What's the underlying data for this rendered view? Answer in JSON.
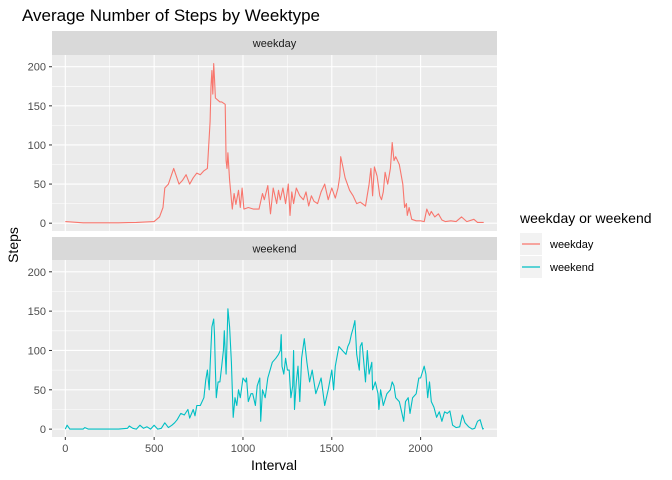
{
  "chart_data": {
    "type": "line",
    "title": "Average Number of Steps by Weektype",
    "xlabel": "Interval",
    "ylabel": "Steps",
    "xlim": [
      -75,
      2430
    ],
    "ylim": [
      -10,
      215
    ],
    "x_ticks": [
      0,
      500,
      1000,
      1500,
      2000
    ],
    "y_ticks": [
      0,
      50,
      100,
      150,
      200
    ],
    "grid": true,
    "legend": {
      "title": "weekday or weekend",
      "position": "right",
      "entries": [
        "weekday",
        "weekend"
      ]
    },
    "panels": [
      {
        "strip": "weekday",
        "series": "weekday",
        "color": "#F8766D",
        "points": [
          [
            0,
            2
          ],
          [
            100,
            0.5
          ],
          [
            200,
            0.5
          ],
          [
            300,
            0.5
          ],
          [
            400,
            1
          ],
          [
            500,
            2
          ],
          [
            530,
            8
          ],
          [
            550,
            20
          ],
          [
            560,
            45
          ],
          [
            580,
            50
          ],
          [
            610,
            70
          ],
          [
            640,
            50
          ],
          [
            660,
            55
          ],
          [
            680,
            62
          ],
          [
            700,
            50
          ],
          [
            720,
            58
          ],
          [
            740,
            64
          ],
          [
            760,
            62
          ],
          [
            780,
            67
          ],
          [
            800,
            70
          ],
          [
            815,
            130
          ],
          [
            820,
            175
          ],
          [
            825,
            195
          ],
          [
            830,
            165
          ],
          [
            835,
            204
          ],
          [
            840,
            185
          ],
          [
            845,
            160
          ],
          [
            870,
            155
          ],
          [
            880,
            155
          ],
          [
            900,
            152
          ],
          [
            905,
            80
          ],
          [
            910,
            70
          ],
          [
            915,
            90
          ],
          [
            925,
            55
          ],
          [
            935,
            30
          ],
          [
            940,
            18
          ],
          [
            950,
            38
          ],
          [
            960,
            24
          ],
          [
            975,
            42
          ],
          [
            985,
            20
          ],
          [
            995,
            45
          ],
          [
            1005,
            18
          ],
          [
            1030,
            20
          ],
          [
            1060,
            18
          ],
          [
            1090,
            18
          ],
          [
            1110,
            38
          ],
          [
            1120,
            30
          ],
          [
            1140,
            48
          ],
          [
            1155,
            12
          ],
          [
            1170,
            45
          ],
          [
            1190,
            25
          ],
          [
            1200,
            42
          ],
          [
            1210,
            30
          ],
          [
            1225,
            45
          ],
          [
            1240,
            25
          ],
          [
            1255,
            50
          ],
          [
            1265,
            10
          ],
          [
            1275,
            40
          ],
          [
            1285,
            25
          ],
          [
            1300,
            45
          ],
          [
            1320,
            35
          ],
          [
            1340,
            30
          ],
          [
            1355,
            40
          ],
          [
            1370,
            22
          ],
          [
            1385,
            35
          ],
          [
            1400,
            28
          ],
          [
            1420,
            25
          ],
          [
            1440,
            40
          ],
          [
            1460,
            50
          ],
          [
            1480,
            30
          ],
          [
            1500,
            45
          ],
          [
            1520,
            32
          ],
          [
            1535,
            45
          ],
          [
            1545,
            60
          ],
          [
            1550,
            85
          ],
          [
            1560,
            75
          ],
          [
            1575,
            58
          ],
          [
            1600,
            42
          ],
          [
            1620,
            35
          ],
          [
            1640,
            25
          ],
          [
            1660,
            27
          ],
          [
            1690,
            22
          ],
          [
            1710,
            50
          ],
          [
            1720,
            70
          ],
          [
            1730,
            35
          ],
          [
            1740,
            72
          ],
          [
            1755,
            60
          ],
          [
            1770,
            35
          ],
          [
            1780,
            30
          ],
          [
            1790,
            40
          ],
          [
            1800,
            65
          ],
          [
            1815,
            50
          ],
          [
            1830,
            70
          ],
          [
            1840,
            103
          ],
          [
            1850,
            80
          ],
          [
            1860,
            85
          ],
          [
            1880,
            75
          ],
          [
            1900,
            50
          ],
          [
            1910,
            20
          ],
          [
            1920,
            25
          ],
          [
            1925,
            10
          ],
          [
            1935,
            20
          ],
          [
            1950,
            5
          ],
          [
            1975,
            3
          ],
          [
            2000,
            3
          ],
          [
            2020,
            2
          ],
          [
            2035,
            18
          ],
          [
            2050,
            10
          ],
          [
            2060,
            15
          ],
          [
            2080,
            8
          ],
          [
            2100,
            12
          ],
          [
            2120,
            4
          ],
          [
            2140,
            2
          ],
          [
            2170,
            3
          ],
          [
            2200,
            2
          ],
          [
            2230,
            8
          ],
          [
            2260,
            2
          ],
          [
            2300,
            5
          ],
          [
            2320,
            1
          ],
          [
            2355,
            1
          ]
        ]
      },
      {
        "strip": "weekend",
        "series": "weekend",
        "color": "#00BFC4",
        "points": [
          [
            0,
            0
          ],
          [
            10,
            5
          ],
          [
            25,
            0
          ],
          [
            100,
            0
          ],
          [
            110,
            2
          ],
          [
            130,
            0
          ],
          [
            200,
            0
          ],
          [
            300,
            0
          ],
          [
            350,
            1
          ],
          [
            360,
            4
          ],
          [
            380,
            1
          ],
          [
            400,
            0
          ],
          [
            420,
            5
          ],
          [
            440,
            1
          ],
          [
            460,
            3
          ],
          [
            480,
            0
          ],
          [
            500,
            5
          ],
          [
            520,
            0
          ],
          [
            540,
            1
          ],
          [
            560,
            8
          ],
          [
            580,
            2
          ],
          [
            600,
            5
          ],
          [
            615,
            8
          ],
          [
            630,
            12
          ],
          [
            650,
            20
          ],
          [
            670,
            18
          ],
          [
            690,
            25
          ],
          [
            700,
            14
          ],
          [
            720,
            25
          ],
          [
            730,
            17
          ],
          [
            740,
            30
          ],
          [
            760,
            30
          ],
          [
            780,
            40
          ],
          [
            790,
            62
          ],
          [
            800,
            75
          ],
          [
            810,
            50
          ],
          [
            815,
            80
          ],
          [
            825,
            130
          ],
          [
            835,
            140
          ],
          [
            840,
            120
          ],
          [
            845,
            75
          ],
          [
            850,
            40
          ],
          [
            860,
            60
          ],
          [
            870,
            60
          ],
          [
            880,
            80
          ],
          [
            890,
            100
          ],
          [
            895,
            125
          ],
          [
            905,
            70
          ],
          [
            915,
            153
          ],
          [
            925,
            130
          ],
          [
            935,
            85
          ],
          [
            945,
            15
          ],
          [
            955,
            40
          ],
          [
            965,
            30
          ],
          [
            975,
            50
          ],
          [
            985,
            40
          ],
          [
            1000,
            65
          ],
          [
            1015,
            60
          ],
          [
            1020,
            65
          ],
          [
            1030,
            35
          ],
          [
            1045,
            45
          ],
          [
            1055,
            45
          ],
          [
            1070,
            30
          ],
          [
            1080,
            55
          ],
          [
            1095,
            65
          ],
          [
            1100,
            10
          ],
          [
            1110,
            50
          ],
          [
            1125,
            40
          ],
          [
            1140,
            65
          ],
          [
            1165,
            85
          ],
          [
            1185,
            90
          ],
          [
            1200,
            95
          ],
          [
            1210,
            100
          ],
          [
            1215,
            120
          ],
          [
            1220,
            80
          ],
          [
            1230,
            70
          ],
          [
            1240,
            90
          ],
          [
            1250,
            75
          ],
          [
            1260,
            75
          ],
          [
            1270,
            40
          ],
          [
            1280,
            55
          ],
          [
            1285,
            100
          ],
          [
            1290,
            25
          ],
          [
            1300,
            60
          ],
          [
            1310,
            80
          ],
          [
            1320,
            35
          ],
          [
            1330,
            90
          ],
          [
            1345,
            115
          ],
          [
            1360,
            85
          ],
          [
            1375,
            60
          ],
          [
            1390,
            75
          ],
          [
            1400,
            60
          ],
          [
            1410,
            45
          ],
          [
            1425,
            55
          ],
          [
            1440,
            65
          ],
          [
            1460,
            30
          ],
          [
            1480,
            50
          ],
          [
            1500,
            75
          ],
          [
            1510,
            50
          ],
          [
            1520,
            80
          ],
          [
            1540,
            105
          ],
          [
            1560,
            100
          ],
          [
            1580,
            95
          ],
          [
            1590,
            105
          ],
          [
            1600,
            110
          ],
          [
            1610,
            120
          ],
          [
            1620,
            128
          ],
          [
            1630,
            138
          ],
          [
            1640,
            95
          ],
          [
            1655,
            75
          ],
          [
            1660,
            105
          ],
          [
            1670,
            110
          ],
          [
            1680,
            85
          ],
          [
            1690,
            60
          ],
          [
            1700,
            100
          ],
          [
            1710,
            70
          ],
          [
            1725,
            85
          ],
          [
            1730,
            50
          ],
          [
            1745,
            60
          ],
          [
            1760,
            45
          ],
          [
            1765,
            25
          ],
          [
            1775,
            50
          ],
          [
            1790,
            30
          ],
          [
            1810,
            45
          ],
          [
            1830,
            50
          ],
          [
            1840,
            60
          ],
          [
            1850,
            55
          ],
          [
            1860,
            40
          ],
          [
            1880,
            35
          ],
          [
            1890,
            25
          ],
          [
            1905,
            10
          ],
          [
            1915,
            35
          ],
          [
            1930,
            40
          ],
          [
            1940,
            20
          ],
          [
            1955,
            40
          ],
          [
            1975,
            45
          ],
          [
            1990,
            65
          ],
          [
            2000,
            65
          ],
          [
            2020,
            80
          ],
          [
            2030,
            70
          ],
          [
            2040,
            40
          ],
          [
            2050,
            60
          ],
          [
            2060,
            35
          ],
          [
            2075,
            28
          ],
          [
            2090,
            15
          ],
          [
            2105,
            22
          ],
          [
            2120,
            10
          ],
          [
            2135,
            22
          ],
          [
            2150,
            20
          ],
          [
            2165,
            23
          ],
          [
            2180,
            5
          ],
          [
            2200,
            2
          ],
          [
            2220,
            3
          ],
          [
            2235,
            18
          ],
          [
            2250,
            8
          ],
          [
            2270,
            3
          ],
          [
            2290,
            0
          ],
          [
            2305,
            1
          ],
          [
            2320,
            10
          ],
          [
            2335,
            12
          ],
          [
            2350,
            0
          ],
          [
            2355,
            1
          ]
        ]
      }
    ]
  }
}
